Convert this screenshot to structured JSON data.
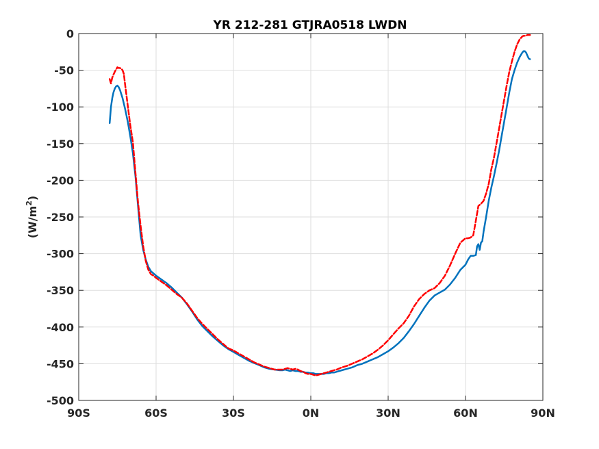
{
  "chart_data": {
    "type": "line",
    "title": "YR 212-281 GTJRA0518 LWDN",
    "xlabel": "",
    "ylabel_main": "(W/m",
    "ylabel_sup": "2",
    "ylabel_close": ")",
    "xlim": [
      -90,
      90
    ],
    "ylim": [
      -500,
      0
    ],
    "grid": true,
    "xticks": [
      -90,
      -60,
      -30,
      0,
      30,
      60,
      90
    ],
    "xtick_labels": [
      "90S",
      "60S",
      "30S",
      "0N",
      "30N",
      "60N",
      "90N"
    ],
    "yticks": [
      0,
      -50,
      -100,
      -150,
      -200,
      -250,
      -300,
      -350,
      -400,
      -450,
      -500
    ],
    "ytick_labels": [
      "0",
      "-50",
      "-100",
      "-150",
      "-200",
      "-250",
      "-300",
      "-350",
      "-400",
      "-450",
      "-500"
    ],
    "series": [
      {
        "color": "#0072BD",
        "style": "solid",
        "x": [
          -78,
          -77.5,
          -77,
          -76.5,
          -76,
          -75.5,
          -75,
          -74.5,
          -74,
          -73,
          -72,
          -71,
          -70,
          -69,
          -68,
          -67,
          -66,
          -65,
          -64,
          -63,
          -62,
          -61,
          -60,
          -58,
          -56,
          -54,
          -52,
          -50,
          -48,
          -46,
          -44,
          -42,
          -40,
          -38,
          -36,
          -34,
          -32,
          -30,
          -28,
          -26,
          -24,
          -22,
          -20,
          -18,
          -16,
          -14,
          -12,
          -11,
          -10,
          -9,
          -8,
          -7,
          -6,
          -5,
          -4,
          -3,
          -2,
          -1,
          0,
          1,
          2,
          3,
          4,
          5,
          6,
          7,
          8,
          9,
          10,
          12,
          14,
          16,
          18,
          20,
          22,
          24,
          26,
          28,
          30,
          32,
          34,
          36,
          38,
          40,
          42,
          44,
          46,
          48,
          50,
          52,
          54,
          56,
          58,
          60,
          61,
          62,
          63,
          64,
          64.5,
          65,
          65.5,
          66,
          66.5,
          67,
          68,
          69,
          70,
          71,
          72,
          73,
          74,
          75,
          76,
          77,
          78,
          79,
          80,
          81,
          82,
          82.5,
          83,
          83.5,
          84,
          84.5,
          85
        ],
        "y": [
          -122,
          -100,
          -88,
          -80,
          -75,
          -72,
          -71,
          -73,
          -77,
          -88,
          -103,
          -120,
          -140,
          -163,
          -195,
          -235,
          -275,
          -295,
          -308,
          -318,
          -324,
          -327,
          -330,
          -335,
          -340,
          -346,
          -353,
          -360,
          -369,
          -379,
          -390,
          -399,
          -406,
          -413,
          -419,
          -425,
          -430,
          -434,
          -438,
          -442,
          -446,
          -449,
          -452,
          -455,
          -457,
          -458,
          -459,
          -459,
          -458,
          -459,
          -460,
          -459,
          -460,
          -460,
          -461,
          -461,
          -462,
          -462,
          -463,
          -463,
          -464,
          -464,
          -464,
          -464,
          -463,
          -463,
          -462,
          -462,
          -461,
          -459,
          -457,
          -455,
          -452,
          -450,
          -447,
          -444,
          -441,
          -437,
          -433,
          -428,
          -422,
          -415,
          -406,
          -396,
          -385,
          -374,
          -364,
          -357,
          -353,
          -349,
          -342,
          -333,
          -322,
          -315,
          -308,
          -303,
          -303,
          -302,
          -290,
          -287,
          -295,
          -285,
          -283,
          -270,
          -250,
          -228,
          -210,
          -195,
          -178,
          -160,
          -140,
          -120,
          -100,
          -80,
          -62,
          -50,
          -40,
          -32,
          -26,
          -24,
          -24,
          -26,
          -30,
          -34,
          -35
        ]
      },
      {
        "color": "#FF0000",
        "style": "dashed",
        "x": [
          -78,
          -77.5,
          -77,
          -76.5,
          -76,
          -75.5,
          -75,
          -74.5,
          -74,
          -73.5,
          -73,
          -72.5,
          -72,
          -71,
          -70,
          -69,
          -68,
          -67,
          -66,
          -65,
          -64,
          -63,
          -62,
          -61,
          -60,
          -58,
          -56,
          -54,
          -52,
          -50,
          -48,
          -46,
          -44,
          -42,
          -40,
          -38,
          -36,
          -34,
          -32,
          -30,
          -28,
          -26,
          -24,
          -22,
          -20,
          -18,
          -16,
          -14,
          -12,
          -11,
          -10,
          -9,
          -8,
          -7,
          -6,
          -5,
          -4,
          -3,
          -2,
          -1,
          0,
          1,
          2,
          3,
          4,
          5,
          6,
          7,
          8,
          9,
          10,
          12,
          14,
          16,
          18,
          20,
          22,
          24,
          26,
          28,
          30,
          32,
          34,
          36,
          38,
          40,
          42,
          44,
          46,
          48,
          50,
          52,
          54,
          56,
          58,
          60,
          61,
          62,
          63,
          64,
          65,
          66,
          67,
          68,
          69,
          70,
          71,
          72,
          73,
          74,
          75,
          76,
          77,
          78,
          79,
          80,
          81,
          82,
          82.5,
          83,
          83.5,
          84,
          84.5,
          85
        ],
        "y": [
          -62,
          -68,
          -60,
          -56,
          -52,
          -49,
          -46,
          -47,
          -47,
          -48,
          -50,
          -55,
          -70,
          -98,
          -125,
          -148,
          -190,
          -230,
          -262,
          -290,
          -310,
          -322,
          -328,
          -330,
          -333,
          -338,
          -343,
          -349,
          -355,
          -360,
          -368,
          -378,
          -388,
          -396,
          -403,
          -410,
          -417,
          -423,
          -429,
          -432,
          -436,
          -440,
          -444,
          -448,
          -451,
          -454,
          -456,
          -458,
          -458,
          -458,
          -457,
          -456,
          -457,
          -458,
          -457,
          -458,
          -460,
          -461,
          -463,
          -464,
          -464,
          -465,
          -466,
          -465,
          -464,
          -463,
          -462,
          -461,
          -460,
          -459,
          -458,
          -455,
          -453,
          -450,
          -447,
          -444,
          -440,
          -436,
          -431,
          -425,
          -418,
          -410,
          -402,
          -395,
          -385,
          -372,
          -362,
          -355,
          -350,
          -347,
          -340,
          -330,
          -316,
          -300,
          -285,
          -279,
          -279,
          -278,
          -275,
          -255,
          -235,
          -232,
          -228,
          -218,
          -205,
          -185,
          -170,
          -150,
          -130,
          -110,
          -90,
          -70,
          -52,
          -38,
          -25,
          -15,
          -8,
          -4,
          -3,
          -3,
          -3,
          -2,
          -2,
          -2
        ]
      }
    ]
  }
}
